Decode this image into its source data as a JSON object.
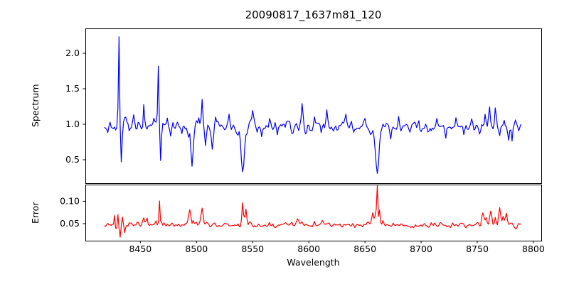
{
  "figure": {
    "background": "#ffffff"
  },
  "chart_data": {
    "type": "line",
    "title": "20090817_1637m81_120",
    "xlabel": "Wavelength",
    "grid": false,
    "legend": null,
    "xlim": [
      8401,
      8807
    ],
    "x_ticks": {
      "values": [
        8450,
        8500,
        8550,
        8600,
        8650,
        8700,
        8750,
        8800
      ],
      "labels": [
        "8450",
        "8500",
        "8550",
        "8600",
        "8650",
        "8700",
        "8750",
        "8800"
      ]
    },
    "sampling": {
      "x_start": 8418,
      "x_end": 8789,
      "x_step": 1,
      "noise_seed": 7
    },
    "subplots": [
      {
        "name": "spectrum",
        "ylabel": "Spectrum",
        "line_color": "#0000ff",
        "ylim": [
          0.17,
          2.35
        ],
        "y_ticks": {
          "values": [
            0.5,
            1.0,
            1.5,
            2.0
          ],
          "labels": [
            "0.5",
            "1.0",
            "1.5",
            "2.0"
          ]
        },
        "baseline": 0.97,
        "noise_sigma": 0.035,
        "features_format": [
          "wavelength",
          "value",
          "gaussian_sigma"
        ],
        "features": [
          [
            8421,
            0.9,
            0.6
          ],
          [
            8423,
            1.05,
            0.6
          ],
          [
            8426,
            0.88,
            0.6
          ],
          [
            8431,
            2.26,
            0.55
          ],
          [
            8433,
            0.45,
            0.7
          ],
          [
            8437,
            1.08,
            0.6
          ],
          [
            8440,
            0.9,
            0.6
          ],
          [
            8444,
            1.06,
            0.6
          ],
          [
            8447,
            0.89,
            0.6
          ],
          [
            8453,
            1.33,
            0.6
          ],
          [
            8456,
            0.9,
            0.6
          ],
          [
            8462,
            1.07,
            0.6
          ],
          [
            8466,
            1.82,
            0.55
          ],
          [
            8468,
            0.5,
            0.7
          ],
          [
            8474,
            1.06,
            0.6
          ],
          [
            8477,
            0.8,
            0.7
          ],
          [
            8483,
            1.05,
            0.6
          ],
          [
            8487,
            0.88,
            0.6
          ],
          [
            8493,
            0.85,
            0.8
          ],
          [
            8496,
            0.42,
            1.0
          ],
          [
            8502,
            1.1,
            0.6
          ],
          [
            8505,
            1.35,
            0.6
          ],
          [
            8508,
            0.68,
            0.7
          ],
          [
            8514,
            0.64,
            0.8
          ],
          [
            8517,
            1.05,
            0.6
          ],
          [
            8529,
            1.12,
            0.7
          ],
          [
            8537,
            0.88,
            0.8
          ],
          [
            8541,
            0.3,
            1.5
          ],
          [
            8546,
            0.92,
            0.8
          ],
          [
            8550,
            1.17,
            0.7
          ],
          [
            8554,
            0.85,
            0.7
          ],
          [
            8558,
            0.82,
            0.7
          ],
          [
            8565,
            1.1,
            0.7
          ],
          [
            8572,
            0.86,
            0.7
          ],
          [
            8580,
            1.08,
            0.7
          ],
          [
            8586,
            0.88,
            0.7
          ],
          [
            8594,
            1.28,
            0.7
          ],
          [
            8598,
            0.85,
            0.7
          ],
          [
            8605,
            1.12,
            0.7
          ],
          [
            8611,
            0.88,
            0.7
          ],
          [
            8616,
            1.2,
            0.7
          ],
          [
            8622,
            0.9,
            0.7
          ],
          [
            8633,
            1.1,
            0.7
          ],
          [
            8640,
            0.86,
            0.7
          ],
          [
            8650,
            1.05,
            0.7
          ],
          [
            8655,
            0.82,
            1.0
          ],
          [
            8661,
            0.31,
            1.6
          ],
          [
            8667,
            0.95,
            0.8
          ],
          [
            8673,
            0.8,
            0.7
          ],
          [
            8680,
            1.08,
            0.7
          ],
          [
            8690,
            0.88,
            0.7
          ],
          [
            8698,
            1.06,
            0.7
          ],
          [
            8706,
            0.9,
            0.7
          ],
          [
            8714,
            1.08,
            0.7
          ],
          [
            8722,
            0.85,
            0.7
          ],
          [
            8731,
            1.06,
            0.7
          ],
          [
            8738,
            0.8,
            0.7
          ],
          [
            8745,
            1.05,
            0.7
          ],
          [
            8752,
            0.88,
            0.7
          ],
          [
            8757,
            1.12,
            0.7
          ],
          [
            8761,
            1.3,
            0.8
          ],
          [
            8764,
            0.95,
            0.5
          ],
          [
            8766,
            1.22,
            0.7
          ],
          [
            8770,
            0.85,
            0.6
          ],
          [
            8774,
            1.1,
            0.6
          ],
          [
            8778,
            0.8,
            0.7
          ],
          [
            8781,
            0.76,
            0.6
          ],
          [
            8784,
            1.05,
            0.6
          ],
          [
            8787,
            0.9,
            0.6
          ]
        ]
      },
      {
        "name": "error",
        "ylabel": "Error",
        "line_color": "#ff0000",
        "ylim": [
          0.012,
          0.137
        ],
        "y_ticks": {
          "values": [
            0.05,
            0.1
          ],
          "labels": [
            "0.05",
            "0.10"
          ]
        },
        "baseline": 0.047,
        "noise_sigma": 0.0028,
        "features_format": [
          "wavelength",
          "value",
          "gaussian_sigma"
        ],
        "features": [
          [
            8421,
            0.05,
            0.6
          ],
          [
            8424,
            0.043,
            0.6
          ],
          [
            8427,
            0.068,
            0.5
          ],
          [
            8428.5,
            0.03,
            0.5
          ],
          [
            8430,
            0.072,
            0.5
          ],
          [
            8432,
            0.022,
            0.6
          ],
          [
            8434,
            0.062,
            0.5
          ],
          [
            8436,
            0.035,
            0.5
          ],
          [
            8440,
            0.052,
            0.6
          ],
          [
            8447,
            0.05,
            0.6
          ],
          [
            8453,
            0.063,
            0.7
          ],
          [
            8456,
            0.06,
            0.6
          ],
          [
            8459,
            0.052,
            0.6
          ],
          [
            8464,
            0.055,
            0.5
          ],
          [
            8467,
            0.102,
            0.5
          ],
          [
            8469,
            0.055,
            0.5
          ],
          [
            8480,
            0.044,
            0.8
          ],
          [
            8490,
            0.052,
            0.7
          ],
          [
            8494,
            0.085,
            1.0
          ],
          [
            8497,
            0.058,
            0.6
          ],
          [
            8500,
            0.05,
            0.6
          ],
          [
            8505,
            0.077,
            1.0
          ],
          [
            8509,
            0.052,
            0.7
          ],
          [
            8520,
            0.043,
            1.0
          ],
          [
            8530,
            0.046,
            0.8
          ],
          [
            8537,
            0.052,
            0.7
          ],
          [
            8541,
            0.101,
            0.7
          ],
          [
            8544,
            0.083,
            0.7
          ],
          [
            8547,
            0.055,
            0.7
          ],
          [
            8555,
            0.048,
            0.8
          ],
          [
            8565,
            0.05,
            0.8
          ],
          [
            8570,
            0.044,
            0.8
          ],
          [
            8580,
            0.05,
            0.8
          ],
          [
            8585,
            0.053,
            0.7
          ],
          [
            8590,
            0.06,
            0.9
          ],
          [
            8594,
            0.056,
            0.8
          ],
          [
            8605,
            0.05,
            0.8
          ],
          [
            8612,
            0.053,
            0.8
          ],
          [
            8618,
            0.048,
            0.8
          ],
          [
            8628,
            0.052,
            0.8
          ],
          [
            8636,
            0.046,
            0.8
          ],
          [
            8645,
            0.05,
            0.8
          ],
          [
            8652,
            0.055,
            0.8
          ],
          [
            8657,
            0.07,
            0.9
          ],
          [
            8659.5,
            0.08,
            0.6
          ],
          [
            8661,
            0.132,
            0.5
          ],
          [
            8663,
            0.086,
            0.6
          ],
          [
            8666,
            0.058,
            0.8
          ],
          [
            8672,
            0.05,
            0.8
          ],
          [
            8685,
            0.046,
            0.8
          ],
          [
            8700,
            0.05,
            0.8
          ],
          [
            8715,
            0.046,
            0.8
          ],
          [
            8728,
            0.05,
            0.8
          ],
          [
            8740,
            0.044,
            0.8
          ],
          [
            8750,
            0.052,
            0.8
          ],
          [
            8755,
            0.073,
            1.0
          ],
          [
            8758,
            0.06,
            0.7
          ],
          [
            8762,
            0.082,
            1.0
          ],
          [
            8766,
            0.062,
            0.8
          ],
          [
            8770,
            0.083,
            0.9
          ],
          [
            8773,
            0.065,
            0.8
          ],
          [
            8776,
            0.072,
            0.9
          ],
          [
            8780,
            0.055,
            0.8
          ],
          [
            8784,
            0.042,
            1.0
          ],
          [
            8787,
            0.046,
            0.8
          ]
        ]
      }
    ]
  }
}
